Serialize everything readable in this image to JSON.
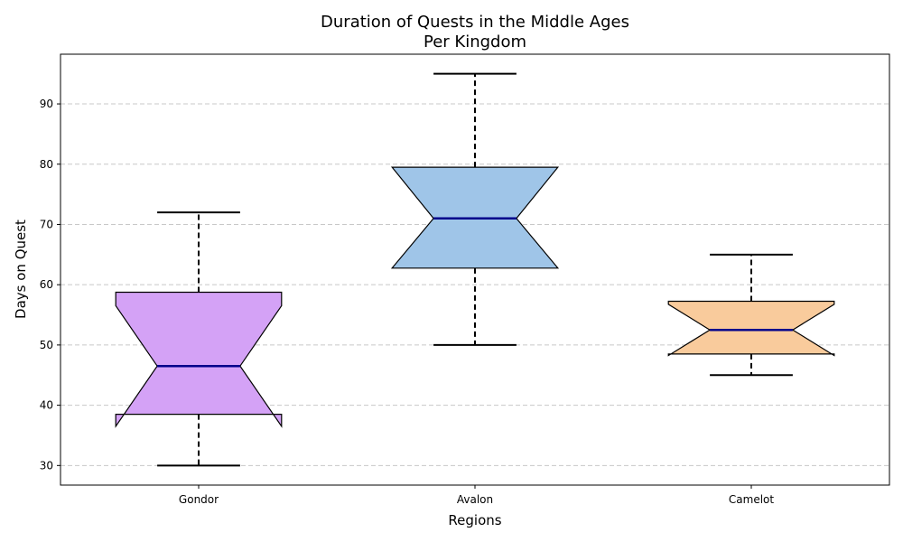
{
  "chart_data": {
    "type": "box",
    "title": "Duration of Quests in the Middle Ages",
    "subtitle": "Per Kingdom",
    "xlabel": "Regions",
    "ylabel": "Days on Quest",
    "ylim": [
      26.75,
      98.25
    ],
    "yticks": [
      30,
      40,
      50,
      60,
      70,
      80,
      90
    ],
    "grid": "y-dashed",
    "notched": true,
    "categories": [
      "Gondor",
      "Avalon",
      "Camelot"
    ],
    "boxes": [
      {
        "category": "Gondor",
        "whisker_low": 30,
        "q1": 38.5,
        "median": 46.5,
        "q3": 58.75,
        "whisker_high": 72,
        "notch_low": 36.5,
        "notch_high": 56.5,
        "color": "#d4a2f6"
      },
      {
        "category": "Avalon",
        "whisker_low": 50,
        "q1": 62.75,
        "median": 71,
        "q3": 79.5,
        "whisker_high": 95,
        "notch_low": 62.75,
        "notch_high": 79.5,
        "color": "#9fc5e8"
      },
      {
        "category": "Camelot",
        "whisker_low": 45,
        "q1": 48.5,
        "median": 52.5,
        "q3": 57.25,
        "whisker_high": 65,
        "notch_low": 48.25,
        "notch_high": 56.75,
        "color": "#f9cb9c"
      }
    ],
    "median_color": "#00008b",
    "edge_color": "#000000",
    "grid_color": "#c8c8c8"
  }
}
